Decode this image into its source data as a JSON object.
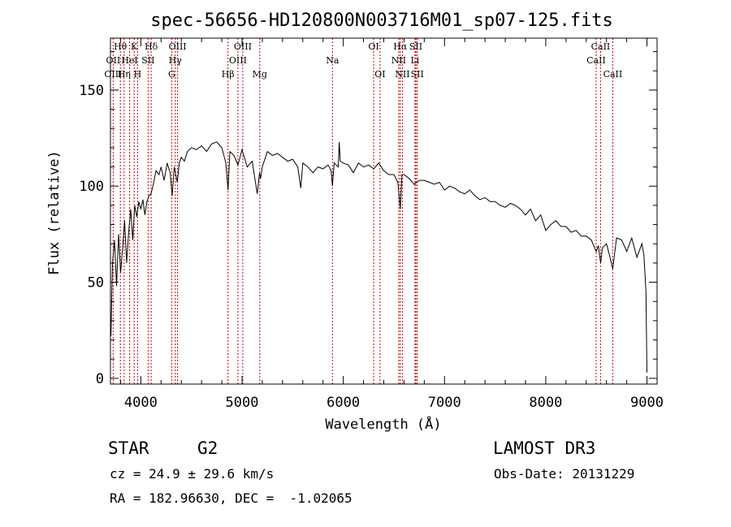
{
  "chart_data": {
    "type": "line",
    "title": "spec-56656-HD120800N003716M01_sp07-125.fits",
    "xlabel": "Wavelength (Å)",
    "ylabel": "Flux (relative)",
    "xlim": [
      3700,
      9100
    ],
    "ylim": [
      -3,
      177
    ],
    "xticks": [
      4000,
      5000,
      6000,
      7000,
      8000,
      9000
    ],
    "xtick_labels": [
      "4000",
      "5000",
      "6000",
      "7000",
      "8000",
      "9000"
    ],
    "yticks": [
      0,
      50,
      100,
      150
    ],
    "ytick_labels": [
      "0",
      "50",
      "100",
      "150"
    ],
    "series": [
      {
        "name": "flux",
        "x": [
          3705,
          3720,
          3740,
          3760,
          3780,
          3800,
          3820,
          3840,
          3860,
          3880,
          3900,
          3920,
          3940,
          3960,
          3980,
          4000,
          4020,
          4040,
          4060,
          4080,
          4100,
          4120,
          4150,
          4180,
          4200,
          4230,
          4260,
          4290,
          4310,
          4330,
          4360,
          4380,
          4400,
          4430,
          4460,
          4500,
          4550,
          4600,
          4650,
          4700,
          4750,
          4800,
          4840,
          4861,
          4880,
          4920,
          4960,
          5000,
          5050,
          5100,
          5150,
          5172,
          5183,
          5200,
          5250,
          5300,
          5350,
          5400,
          5450,
          5500,
          5550,
          5580,
          5600,
          5650,
          5700,
          5750,
          5800,
          5850,
          5880,
          5893,
          5910,
          5950,
          5960,
          5970,
          6000,
          6050,
          6100,
          6150,
          6200,
          6250,
          6300,
          6350,
          6400,
          6450,
          6500,
          6540,
          6563,
          6580,
          6600,
          6650,
          6700,
          6750,
          6800,
          6850,
          6900,
          6950,
          7000,
          7050,
          7100,
          7150,
          7200,
          7250,
          7300,
          7350,
          7400,
          7450,
          7500,
          7550,
          7600,
          7650,
          7700,
          7750,
          7800,
          7850,
          7900,
          7950,
          8000,
          8050,
          8100,
          8150,
          8200,
          8250,
          8300,
          8350,
          8400,
          8450,
          8498,
          8520,
          8542,
          8560,
          8600,
          8630,
          8662,
          8700,
          8750,
          8800,
          8850,
          8900,
          8950,
          8970,
          8990,
          9000
        ],
        "values": [
          22,
          60,
          72,
          48,
          75,
          55,
          68,
          82,
          60,
          76,
          88,
          72,
          90,
          84,
          92,
          88,
          93,
          85,
          92,
          95,
          96,
          100,
          108,
          106,
          110,
          103,
          112,
          107,
          95,
          110,
          102,
          112,
          115,
          113,
          118,
          120,
          119,
          121,
          118,
          122,
          123,
          120,
          112,
          98,
          118,
          116,
          111,
          119,
          110,
          113,
          96,
          107,
          104,
          110,
          118,
          116,
          117,
          115,
          113,
          114,
          110,
          99,
          112,
          110,
          107,
          110,
          109,
          111,
          108,
          100,
          112,
          110,
          123,
          113,
          112,
          111,
          107,
          112,
          110,
          111,
          109,
          112,
          108,
          106,
          106,
          102,
          88,
          106,
          106,
          104,
          101,
          103,
          103,
          102,
          101,
          102,
          98,
          100,
          99,
          97,
          96,
          98,
          95,
          93,
          94,
          92,
          92,
          90,
          89,
          91,
          90,
          88,
          85,
          88,
          82,
          85,
          77,
          80,
          82,
          79,
          79,
          76,
          77,
          74,
          74,
          72,
          66,
          69,
          60,
          68,
          70,
          64,
          57,
          73,
          72,
          66,
          73,
          63,
          70,
          64,
          45,
          3
        ]
      }
    ],
    "spectral_lines": [
      {
        "name": "Hθ",
        "wavelength": 3798,
        "row": 1
      },
      {
        "name": "OII",
        "wavelength": 3727,
        "row": 2
      },
      {
        "name": "OIII",
        "wavelength": 3727,
        "row": 3
      },
      {
        "name": "K",
        "wavelength": 3934,
        "row": 1
      },
      {
        "name": "HeI",
        "wavelength": 3889,
        "row": 2
      },
      {
        "name": "Hη",
        "wavelength": 3835,
        "row": 3
      },
      {
        "name": "SII",
        "wavelength": 4072,
        "row": 2
      },
      {
        "name": "H",
        "wavelength": 3968,
        "row": 3
      },
      {
        "name": "Hδ",
        "wavelength": 4102,
        "row": 1
      },
      {
        "name": "OIII",
        "wavelength": 4363,
        "row": 1
      },
      {
        "name": "Hγ",
        "wavelength": 4340,
        "row": 2
      },
      {
        "name": "G",
        "wavelength": 4305,
        "row": 3
      },
      {
        "name": "OIII",
        "wavelength": 5007,
        "row": 1
      },
      {
        "name": "OIII",
        "wavelength": 4959,
        "row": 2
      },
      {
        "name": "Hβ",
        "wavelength": 4861,
        "row": 3
      },
      {
        "name": "Mg",
        "wavelength": 5175,
        "row": 3
      },
      {
        "name": "Na",
        "wavelength": 5893,
        "row": 2
      },
      {
        "name": "OI",
        "wavelength": 6300,
        "row": 1
      },
      {
        "name": "OI",
        "wavelength": 6363,
        "row": 3
      },
      {
        "name": "Hα",
        "wavelength": 6563,
        "row": 1
      },
      {
        "name": "NII",
        "wavelength": 6548,
        "row": 2
      },
      {
        "name": "NII",
        "wavelength": 6584,
        "row": 3
      },
      {
        "name": "SII",
        "wavelength": 6717,
        "row": 1
      },
      {
        "name": "Li",
        "wavelength": 6708,
        "row": 2
      },
      {
        "name": "SII",
        "wavelength": 6731,
        "row": 3
      },
      {
        "name": "CaII",
        "wavelength": 8498,
        "row": 2
      },
      {
        "name": "CaII",
        "wavelength": 8542,
        "row": 1
      },
      {
        "name": "CaII",
        "wavelength": 8662,
        "row": 3
      }
    ]
  },
  "info": {
    "class_text": "STAR",
    "subclass_text": "G2",
    "survey_text": "LAMOST DR3",
    "cz_text": "cz = 24.9 ± 29.6 km/s",
    "obsdate_text": "Obs-Date: 20131229",
    "radec_text": "RA = 182.96630, DEC =  -1.02065"
  },
  "colors": {
    "spectrum": "#000000",
    "line_marker": "#cc0000",
    "axis": "#000000"
  }
}
